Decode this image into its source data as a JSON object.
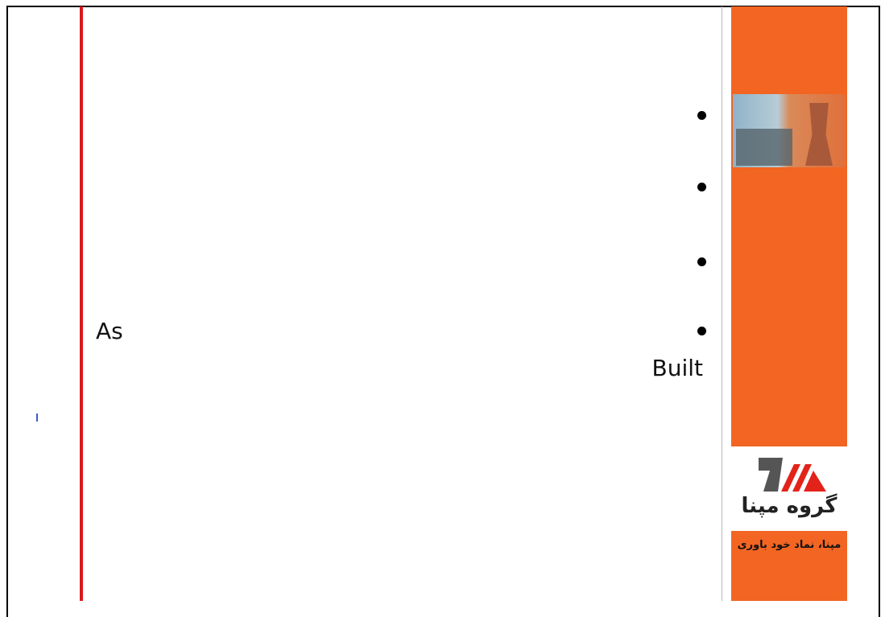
{
  "body": {
    "left_text": "As",
    "right_text": "Built"
  },
  "sidebar": {
    "logo_text": "گروه مپنا",
    "tagline": "مپنا، نماد خود باوری"
  }
}
